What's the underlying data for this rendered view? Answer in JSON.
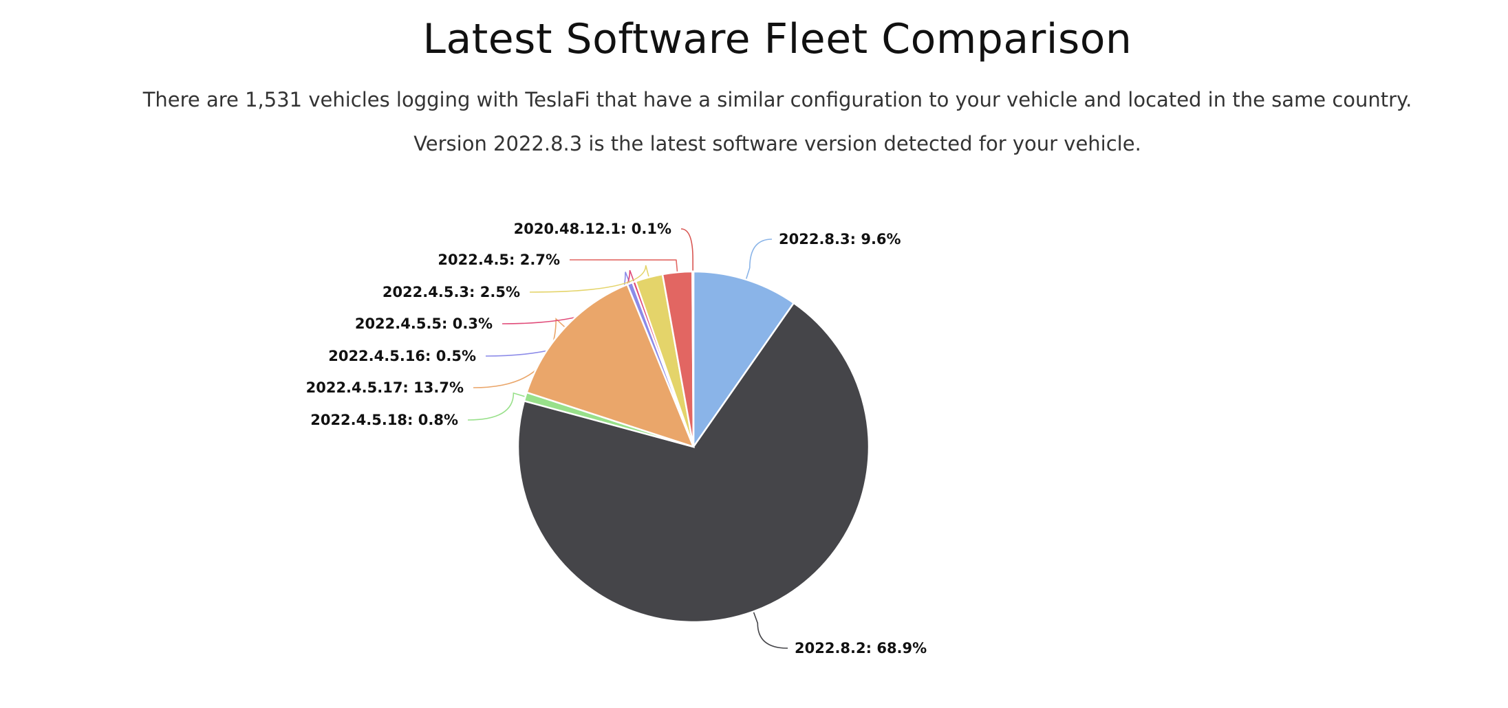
{
  "header": {
    "title": "Latest Software Fleet Comparison",
    "summary_line_1": "There are 1,531 vehicles logging with TeslaFi that have a similar configuration to your vehicle and located in the same country.",
    "summary_line_2": "Version 2022.8.3 is the latest software version detected for your vehicle."
  },
  "chart_data": {
    "type": "pie",
    "title": "",
    "slices": [
      {
        "label": "2022.8.3",
        "value": 9.6,
        "display": "2022.8.3: 9.6%",
        "color": "#8ab4e8"
      },
      {
        "label": "2022.8.2",
        "value": 68.9,
        "display": "2022.8.2: 68.9%",
        "color": "#454549"
      },
      {
        "label": "2022.4.5.18",
        "value": 0.8,
        "display": "2022.4.5.18: 0.8%",
        "color": "#98e08a"
      },
      {
        "label": "2022.4.5.17",
        "value": 13.7,
        "display": "2022.4.5.17: 13.7%",
        "color": "#eaa66a"
      },
      {
        "label": "2022.4.5.16",
        "value": 0.5,
        "display": "2022.4.5.16: 0.5%",
        "color": "#8b8ae8"
      },
      {
        "label": "2022.4.5.5",
        "value": 0.3,
        "display": "2022.4.5.5: 0.3%",
        "color": "#e04a78"
      },
      {
        "label": "2022.4.5.3",
        "value": 2.5,
        "display": "2022.4.5.3: 2.5%",
        "color": "#e4d46a"
      },
      {
        "label": "2022.4.5",
        "value": 2.7,
        "display": "2022.4.5: 2.7%",
        "color": "#e26662"
      },
      {
        "label": "2020.48.12.1",
        "value": 0.1,
        "display": "2020.48.12.1: 0.1%",
        "color": "#d85450"
      }
    ]
  }
}
